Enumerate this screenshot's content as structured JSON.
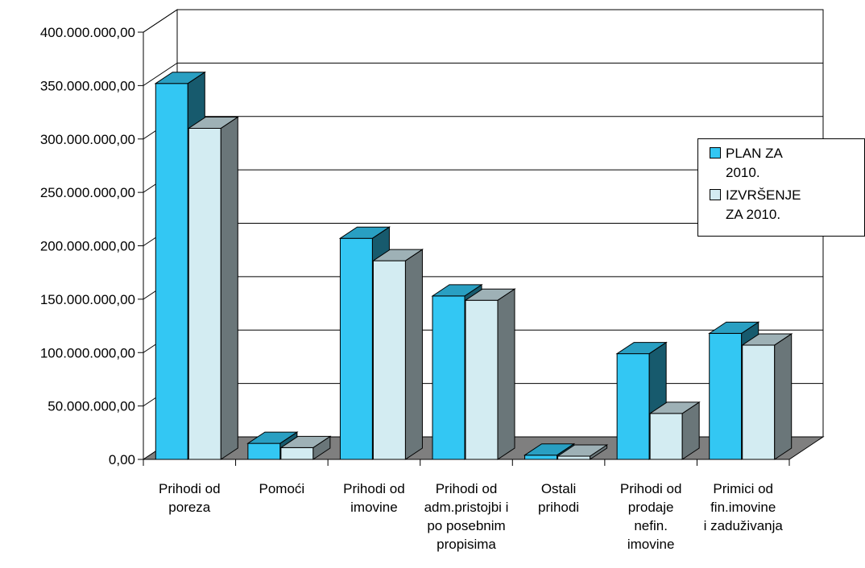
{
  "chart_data": {
    "type": "bar",
    "categories": [
      [
        "Prihodi od",
        "poreza"
      ],
      [
        "Pomoći"
      ],
      [
        "Prihodi od",
        "imovine"
      ],
      [
        "Prihodi od",
        "adm.pristojbi i",
        "po posebnim",
        "propisima"
      ],
      [
        "Ostali",
        "prihodi"
      ],
      [
        "Prihodi od",
        "prodaje",
        "nefin.",
        "imovine"
      ],
      [
        "Primici od",
        "fin.imovine",
        "i zaduživanja"
      ]
    ],
    "series": [
      {
        "name": "PLAN ZA 2010.",
        "color": "#33c7f3",
        "values": [
          352000000,
          15000000,
          207000000,
          153000000,
          4000000,
          99000000,
          118000000
        ]
      },
      {
        "name": "IZVRŠENJE ZA 2010.",
        "color": "#d3ecf2",
        "values": [
          310000000,
          11000000,
          186000000,
          149000000,
          3000000,
          43000000,
          107000000
        ]
      }
    ],
    "yticks": [
      "0,00",
      "50.000.000,00",
      "100.000.000,00",
      "150.000.000,00",
      "200.000.000,00",
      "250.000.000,00",
      "300.000.000,00",
      "350.000.000,00",
      "400.000.000,00"
    ],
    "ylim": [
      0,
      400000000
    ],
    "grid": true,
    "legend_position": "right",
    "legend": [
      {
        "label": "PLAN ZA 2010.",
        "lines": [
          "PLAN ZA",
          "2010."
        ],
        "color": "#33c7f3"
      },
      {
        "label": "IZVRŠENJE ZA 2010.",
        "lines": [
          "IZVRŠENJE",
          "ZA 2010."
        ],
        "color": "#d3ecf2"
      }
    ]
  }
}
